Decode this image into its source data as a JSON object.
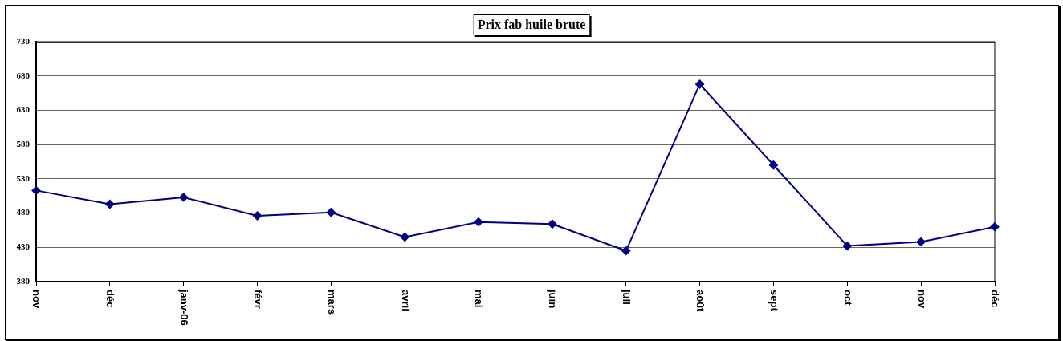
{
  "chart_data": {
    "type": "line",
    "title": "Prix fab huile brute",
    "categories": [
      "nov",
      "déc",
      "janv-06",
      "févr",
      "mars",
      "avril",
      "mai",
      "juin",
      "juil",
      "août",
      "sept",
      "oct",
      "nov",
      "déc"
    ],
    "series": [
      {
        "color": "#000080",
        "values": [
          513,
          493,
          503,
          476,
          481,
          445,
          467,
          464,
          425,
          668,
          550,
          432,
          438,
          460
        ]
      }
    ],
    "ylim": [
      380,
      730
    ],
    "yticks": [
      380,
      430,
      480,
      530,
      580,
      630,
      680,
      730
    ],
    "grid": "y",
    "legend": false,
    "marker": "diamond",
    "line_style": "solid"
  }
}
